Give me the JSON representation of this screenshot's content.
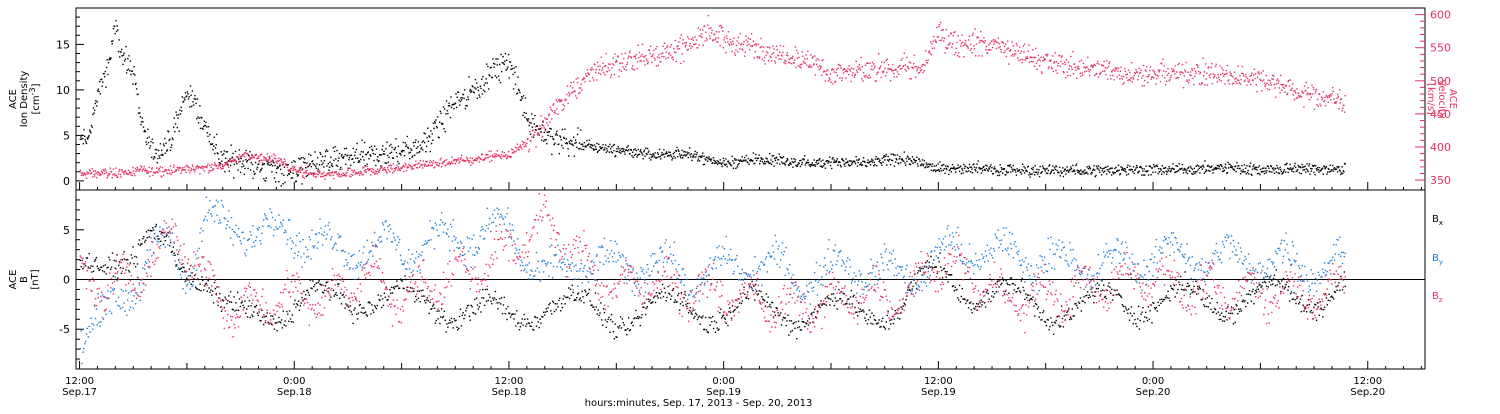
{
  "xaxis": {
    "label": "hours:minutes, Sep. 17, 2013 - Sep. 20, 2013",
    "ticks": [
      {
        "time": "12:00",
        "date": "Sep.17",
        "hours": 12
      },
      {
        "time": "0:00",
        "date": "Sep.18",
        "hours": 24
      },
      {
        "time": "12:00",
        "date": "Sep.18",
        "hours": 36
      },
      {
        "time": "0:00",
        "date": "Sep.19",
        "hours": 48
      },
      {
        "time": "12:00",
        "date": "Sep.19",
        "hours": 60
      },
      {
        "time": "0:00",
        "date": "Sep.20",
        "hours": 72
      },
      {
        "time": "12:00",
        "date": "Sep.20",
        "hours": 84
      }
    ],
    "range_hours": [
      11.8,
      87.2
    ],
    "data_end_hours": 82.7
  },
  "chart_data": [
    {
      "type": "scatter",
      "panel": "top",
      "ylabel": "ACE Ion Density [cm-3]",
      "ylabel_lines": [
        "ACE",
        "Ion Density",
        "[cm"
      ],
      "ylabel_sup": "-3",
      "ylim": [
        -1,
        19
      ],
      "yticks": [
        0,
        5,
        10,
        15
      ],
      "y2label": "ACE Velocity [km/s]",
      "y2label_lines": [
        "ACE",
        "Velocity",
        "[km/s]"
      ],
      "y2lim": [
        335,
        610
      ],
      "y2ticks": [
        350,
        400,
        450,
        500,
        550,
        600
      ],
      "series": [
        {
          "axis": "left",
          "color": "#000000",
          "x": [
            12,
            12.5,
            13,
            13.5,
            14,
            14.5,
            15,
            15.5,
            16,
            16.5,
            17,
            18,
            19,
            20,
            21,
            22,
            23,
            24,
            25,
            26,
            27,
            28,
            29,
            30,
            31,
            32,
            33,
            34,
            35,
            36,
            37,
            38,
            39,
            40,
            42,
            44,
            46,
            48,
            50,
            52,
            54,
            56,
            58,
            60,
            62,
            64,
            66,
            68,
            70,
            72,
            74,
            76,
            78,
            80,
            82.7
          ],
          "values": [
            4.5,
            5,
            10,
            12,
            17,
            13,
            12,
            6,
            3,
            3.5,
            4,
            10,
            6,
            2,
            2.5,
            1.5,
            1.3,
            1.2,
            2,
            2.3,
            2.5,
            2.8,
            3,
            3.5,
            4,
            6,
            9,
            10,
            12,
            13,
            7,
            5,
            4.5,
            4,
            3.5,
            3,
            3,
            2,
            2.5,
            2,
            2.2,
            2,
            2.5,
            1.5,
            1.5,
            1.3,
            1.2,
            1.2,
            1.3,
            1.3,
            1.4,
            1.5,
            1.3,
            1.4,
            1.3
          ]
        },
        {
          "axis": "right",
          "color": "#e8315f",
          "x": [
            12,
            14,
            16,
            18,
            20,
            21,
            22,
            23,
            24,
            25,
            26,
            28,
            30,
            32,
            34,
            35,
            36,
            37,
            38,
            39,
            40,
            41,
            42,
            44,
            46,
            47,
            48,
            50,
            52,
            54,
            56,
            58,
            59,
            60,
            61,
            62,
            64,
            66,
            68,
            70,
            72,
            74,
            76,
            78,
            80,
            82.7
          ],
          "values": [
            360,
            362,
            365,
            368,
            372,
            388,
            385,
            382,
            365,
            360,
            358,
            364,
            370,
            376,
            382,
            388,
            390,
            410,
            440,
            470,
            500,
            520,
            525,
            540,
            550,
            580,
            560,
            550,
            540,
            510,
            515,
            525,
            515,
            570,
            555,
            560,
            545,
            530,
            520,
            515,
            510,
            512,
            510,
            505,
            485,
            470
          ]
        }
      ]
    },
    {
      "type": "scatter",
      "panel": "bottom",
      "ylabel": "ACE B [nT]",
      "ylabel_lines": [
        "ACE",
        "B",
        "[nT]"
      ],
      "ylim": [
        -9,
        9
      ],
      "yticks": [
        -5,
        0,
        5
      ],
      "zero_line": true,
      "series": [
        {
          "name": "Bx",
          "color": "#000000",
          "x": [
            12,
            13,
            14,
            15,
            16,
            17,
            18,
            19,
            20,
            21,
            22,
            24,
            26,
            28,
            30,
            32,
            34,
            36,
            38,
            40,
            42,
            44,
            46,
            48,
            50,
            52,
            54,
            56,
            58,
            60,
            62,
            64,
            66,
            68,
            70,
            72,
            74,
            76,
            78,
            80,
            82.7
          ],
          "values": [
            2,
            3,
            2.5,
            1,
            3.5,
            4,
            2,
            0,
            -3.5,
            -4,
            -3,
            -2.5,
            -2,
            -1.5,
            -2,
            -2.5,
            -3,
            -4,
            -2,
            -3,
            -3.5,
            -3,
            -2.5,
            -3,
            -2.8,
            -3,
            -3.2,
            -3,
            -2.5,
            1,
            -1,
            -2,
            -2.5,
            -3,
            -2,
            -2,
            -2,
            -2,
            -1.5,
            -1.5,
            -1
          ]
        },
        {
          "name": "By",
          "color": "#1f7fd6",
          "x": [
            12,
            13,
            14,
            15,
            16,
            17,
            18,
            19,
            20,
            21,
            22,
            24,
            26,
            28,
            30,
            32,
            34,
            36,
            38,
            40,
            42,
            44,
            46,
            48,
            50,
            52,
            54,
            56,
            58,
            60,
            62,
            64,
            66,
            68,
            70,
            72,
            74,
            76,
            78,
            80,
            82.7
          ],
          "values": [
            -5.5,
            -4.5,
            -2,
            0,
            2,
            3.5,
            1,
            6,
            5,
            5.5,
            5,
            5,
            3,
            3.5,
            3,
            4,
            4.5,
            5,
            0,
            2,
            1,
            2,
            0,
            1,
            2,
            0,
            1,
            1.5,
            0,
            2.5,
            3,
            2.5,
            2,
            1.5,
            1.5,
            2.5,
            2.5,
            2,
            2,
            1.5,
            1.5
          ]
        },
        {
          "name": "Bz",
          "color": "#e8315f",
          "x": [
            12,
            13,
            14,
            15,
            16,
            17,
            18,
            19,
            20,
            21,
            22,
            24,
            26,
            28,
            30,
            32,
            34,
            36,
            38,
            40,
            42,
            44,
            46,
            48,
            50,
            52,
            54,
            56,
            58,
            60,
            62,
            64,
            66,
            68,
            70,
            72,
            74,
            76,
            78,
            80,
            82.7
          ],
          "values": [
            0,
            -1,
            0.5,
            -1.5,
            3,
            4,
            3,
            0,
            -2,
            -3,
            -2.5,
            -1.5,
            -2,
            1,
            -2,
            0,
            1,
            3,
            6,
            2,
            -1,
            0,
            -1,
            -1.5,
            -2,
            -3,
            -2,
            -1.5,
            -2,
            2,
            0,
            -2,
            -1.5,
            -1,
            0,
            0.5,
            -1,
            -1.5,
            -1,
            -1.2,
            -1
          ]
        }
      ],
      "legend": [
        {
          "sym": "B",
          "sub": "x",
          "color": "#000000"
        },
        {
          "sym": "B",
          "sub": "y",
          "color": "#1f7fd6"
        },
        {
          "sym": "B",
          "sub": "z",
          "color": "#e8315f"
        }
      ]
    }
  ],
  "colors": {
    "density": "#000000",
    "velocity": "#e8315f",
    "bx": "#000000",
    "by": "#1f7fd6",
    "bz": "#e8315f",
    "frame": "#000000"
  }
}
